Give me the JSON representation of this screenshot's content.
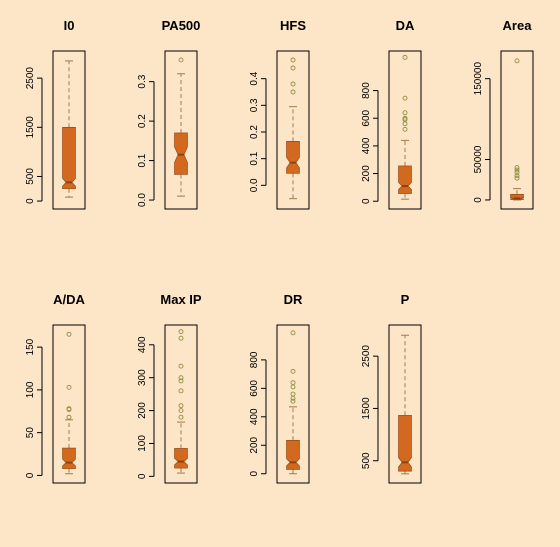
{
  "chart_data": [
    {
      "type": "boxplot",
      "title": "I0",
      "yticks": [
        0,
        500,
        1500,
        2500
      ],
      "ylim": [
        -60,
        2950
      ],
      "whisker_low": 80,
      "q1": 250,
      "median": 380,
      "q3": 1500,
      "whisker_high": 2850,
      "notch_low": 300,
      "notch_high": 460,
      "outliers": []
    },
    {
      "type": "boxplot",
      "title": "PA500",
      "yticks": [
        0.0,
        0.1,
        0.2,
        0.3
      ],
      "ylim": [
        -0.01,
        0.365
      ],
      "whisker_low": 0.01,
      "q1": 0.065,
      "median": 0.115,
      "q3": 0.17,
      "whisker_high": 0.32,
      "notch_low": 0.095,
      "notch_high": 0.135,
      "outliers": [
        0.355
      ]
    },
    {
      "type": "boxplot",
      "title": "HFS",
      "yticks": [
        0.0,
        0.1,
        0.2,
        0.3,
        0.4
      ],
      "ylim": [
        -0.07,
        0.485
      ],
      "whisker_low": -0.05,
      "q1": 0.045,
      "median": 0.085,
      "q3": 0.165,
      "whisker_high": 0.295,
      "notch_low": 0.065,
      "notch_high": 0.105,
      "outliers": [
        0.35,
        0.38,
        0.44,
        0.47
      ]
    },
    {
      "type": "boxplot",
      "title": "DA",
      "yticks": [
        0,
        200,
        400,
        600,
        800
      ],
      "ylim": [
        -20,
        1050
      ],
      "whisker_low": 15,
      "q1": 55,
      "median": 110,
      "q3": 255,
      "whisker_high": 440,
      "notch_low": 85,
      "notch_high": 135,
      "outliers": [
        520,
        560,
        590,
        600,
        640,
        745,
        1040
      ]
    },
    {
      "type": "boxplot",
      "title": "Area",
      "yticks": [
        0,
        50000,
        150000
      ],
      "ylim": [
        -5000,
        178000
      ],
      "whisker_low": 0,
      "q1": 500,
      "median": 2000,
      "q3": 7000,
      "whisker_high": 14000,
      "notch_low": 1200,
      "notch_high": 2800,
      "outliers": [
        27000,
        30000,
        34000,
        37000,
        40000,
        172000
      ]
    },
    {
      "type": "boxplot",
      "title": "A/DA",
      "yticks": [
        0,
        50,
        100,
        150
      ],
      "ylim": [
        -3,
        170
      ],
      "whisker_low": 2,
      "q1": 8,
      "median": 15,
      "q3": 32,
      "whisker_high": 65,
      "notch_low": 11,
      "notch_high": 19,
      "outliers": [
        68,
        77,
        78,
        103,
        165
      ]
    },
    {
      "type": "boxplot",
      "title": "Max IP",
      "yticks": [
        0,
        100,
        200,
        300,
        400
      ],
      "ylim": [
        -5,
        445
      ],
      "whisker_low": 10,
      "q1": 25,
      "median": 45,
      "q3": 85,
      "whisker_high": 165,
      "notch_low": 35,
      "notch_high": 55,
      "outliers": [
        180,
        200,
        215,
        260,
        290,
        300,
        335,
        420,
        440
      ]
    },
    {
      "type": "boxplot",
      "title": "DR",
      "yticks": [
        0,
        200,
        400,
        600,
        800
      ],
      "ylim": [
        -30,
        1010
      ],
      "whisker_low": 0,
      "q1": 30,
      "median": 80,
      "q3": 235,
      "whisker_high": 470,
      "notch_low": 55,
      "notch_high": 105,
      "outliers": [
        510,
        530,
        560,
        610,
        640,
        720,
        990
      ]
    },
    {
      "type": "boxplot",
      "title": "P",
      "yticks": [
        500,
        1500,
        2500
      ],
      "ylim": [
        170,
        3000
      ],
      "whisker_low": 250,
      "q1": 300,
      "median": 470,
      "q3": 1370,
      "whisker_high": 2900,
      "notch_low": 380,
      "notch_high": 560,
      "outliers": []
    }
  ]
}
